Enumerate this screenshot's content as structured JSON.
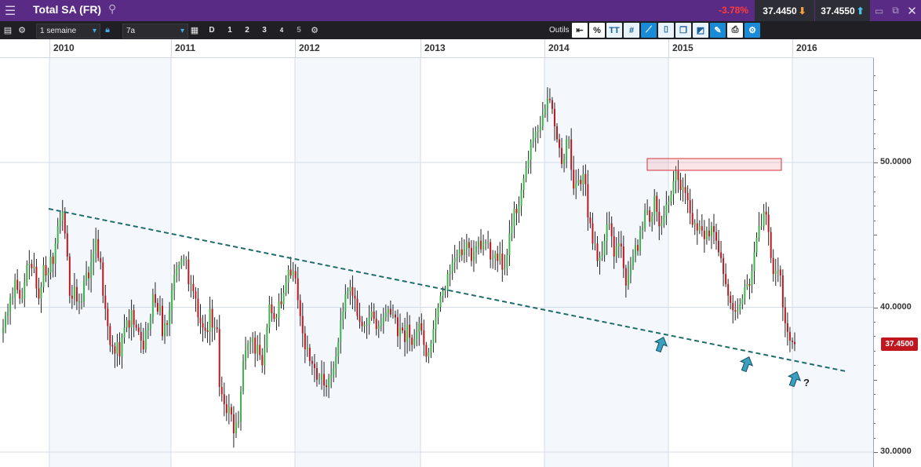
{
  "header": {
    "title": "Total SA (FR)",
    "change": "-3.78%",
    "bid": "37.4450",
    "ask": "37.4550",
    "colors": {
      "header_bg": "#5a2b84",
      "down": "#c0161d",
      "up": "#3cb54a"
    }
  },
  "toolbar": {
    "interval": "1 semaine",
    "range": "7a",
    "day_label": "D",
    "presets": [
      "1",
      "2",
      "3",
      "4",
      "5"
    ],
    "tools_label": "Outils",
    "percent_label": "%",
    "text_tool_label": "TT"
  },
  "icons": {
    "menu": "menu-icon",
    "search": "search-icon",
    "settings": "gear-icon",
    "lock": "lock-icon",
    "calendar": "calendar-icon",
    "tools": [
      "back-arrow-icon",
      "percent-icon",
      "text-icon",
      "grid-icon",
      "draw-icon",
      "candle-icon",
      "layers-icon",
      "shape-icon",
      "annotate-icon",
      "print-icon",
      "settings-tool-icon"
    ]
  },
  "chart_data": {
    "type": "candlestick",
    "x_axis_labels": [
      "2010",
      "2011",
      "2012",
      "2013",
      "2014",
      "2015",
      "2016"
    ],
    "y_axis_labels": [
      "30.0000",
      "40.0000",
      "50.0000"
    ],
    "ylim": [
      29.8,
      57.5
    ],
    "grid": true,
    "current_price": "37.4500",
    "current_price_value": 37.45,
    "weekly_closes": [
      38.6,
      39.4,
      39.7,
      40.7,
      40.7,
      41.9,
      41.2,
      40.6,
      40.6,
      41.7,
      42.9,
      43.0,
      42.7,
      42.8,
      41.3,
      40.6,
      41.4,
      42.9,
      42.2,
      42.4,
      43.5,
      43.0,
      44.4,
      45.6,
      46.0,
      46.6,
      45.1,
      43.5,
      40.8,
      40.6,
      41.4,
      40.4,
      40.4,
      40.4,
      41.8,
      42.4,
      42.0,
      43.1,
      43.8,
      44.7,
      43.4,
      43.1,
      40.8,
      39.9,
      38.7,
      37.4,
      37.3,
      36.8,
      37.6,
      36.6,
      37.9,
      38.6,
      39.1,
      38.6,
      39.8,
      38.8,
      38.6,
      38.3,
      37.7,
      37.1,
      38.4,
      38.5,
      39.3,
      40.9,
      40.3,
      39.7,
      40.1,
      38.0,
      38.9,
      38.8,
      39.8,
      41.2,
      42.2,
      42.7,
      42.9,
      43.3,
      43.3,
      43.3,
      41.6,
      41.6,
      41.1,
      40.6,
      39.3,
      38.9,
      38.6,
      38.4,
      38.3,
      39.9,
      38.6,
      38.6,
      38.5,
      34.5,
      34.0,
      33.3,
      32.7,
      33.1,
      32.6,
      31.3,
      32.0,
      32.1,
      34.2,
      36.3,
      37.0,
      37.5,
      37.6,
      37.9,
      36.8,
      37.4,
      36.7,
      36.0,
      37.2,
      38.6,
      40.2,
      39.6,
      39.2,
      39.3,
      40.4,
      40.2,
      41.0,
      41.7,
      42.6,
      42.2,
      42.5,
      42.0,
      40.5,
      39.4,
      38.2,
      37.1,
      37.2,
      36.3,
      36.1,
      35.8,
      35.0,
      35.0,
      35.4,
      34.6,
      34.5,
      35.1,
      35.3,
      35.8,
      36.6,
      37.6,
      39.1,
      39.7,
      40.9,
      41.1,
      41.4,
      40.8,
      40.6,
      39.4,
      39.0,
      38.7,
      38.8,
      38.8,
      39.3,
      39.7,
      39.2,
      38.5,
      38.7,
      38.9,
      39.3,
      39.6,
      39.9,
      39.5,
      39.5,
      39.3,
      38.0,
      38.6,
      38.4,
      37.6,
      38.8,
      37.9,
      37.4,
      37.8,
      38.3,
      38.9,
      38.4,
      37.4,
      36.6,
      36.9,
      37.5,
      38.5,
      39.3,
      40.0,
      40.8,
      41.1,
      41.2,
      42.3,
      42.5,
      43.1,
      43.4,
      43.5,
      44.0,
      43.6,
      44.0,
      44.5,
      44.1,
      43.2,
      43.8,
      44.2,
      44.6,
      44.0,
      44.5,
      44.5,
      44.5,
      43.3,
      43.4,
      43.7,
      43.2,
      43.7,
      42.6,
      42.7,
      43.6,
      45.1,
      45.6,
      46.8,
      46.5,
      47.0,
      48.1,
      48.9,
      49.6,
      50.2,
      51.4,
      51.7,
      52.1,
      52.2,
      52.5,
      53.3,
      53.7,
      54.4,
      54.3,
      53.7,
      52.5,
      51.6,
      51.0,
      49.9,
      50.2,
      51.6,
      51.6,
      49.5,
      48.2,
      48.6,
      48.8,
      48.5,
      49.2,
      48.5,
      46.2,
      45.8,
      44.4,
      44.4,
      43.2,
      43.4,
      43.6,
      44.6,
      45.7,
      45.8,
      44.9,
      43.5,
      44.2,
      44.4,
      44.2,
      42.7,
      41.5,
      42.2,
      42.9,
      43.5,
      44.3,
      43.9,
      45.3,
      45.5,
      46.7,
      46.7,
      45.9,
      46.3,
      47.7,
      46.6,
      45.6,
      45.8,
      46.3,
      47.1,
      47.3,
      47.8,
      48.7,
      49.4,
      48.8,
      48.1,
      48.3,
      47.9,
      47.4,
      46.5,
      45.7,
      45.8,
      45.3,
      45.6,
      45.3,
      44.7,
      45.3,
      44.9,
      45.6,
      45.2,
      44.6,
      43.8,
      43.4,
      42.3,
      41.6,
      40.8,
      40.3,
      39.8,
      39.7,
      39.8,
      40.2,
      40.6,
      41.4,
      41.6,
      41.5,
      42.5,
      43.8,
      44.8,
      45.6,
      45.6,
      46.6,
      46.4,
      45.2,
      43.4,
      42.3,
      42.5,
      42.6,
      42.2,
      40.0,
      38.9,
      38.3,
      37.7,
      37.6,
      37.45
    ]
  },
  "annotations": {
    "question_mark": "?"
  }
}
